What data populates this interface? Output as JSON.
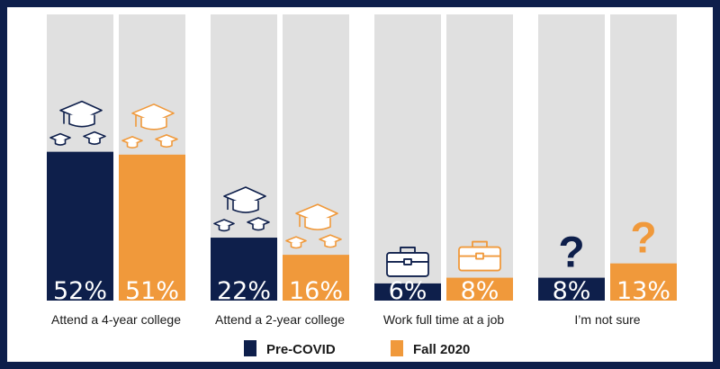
{
  "chart_data": {
    "type": "bar",
    "ylim": [
      0,
      100
    ],
    "categories": [
      {
        "label": "Attend a 4-year college",
        "icon": "graduation-cap-icon"
      },
      {
        "label": "Attend a 2-year college",
        "icon": "graduation-cap-icon"
      },
      {
        "label": "Work full time at a job",
        "icon": "briefcase-icon"
      },
      {
        "label": "I’m not sure",
        "icon": "question-mark-icon"
      }
    ],
    "series": [
      {
        "name": "Pre-COVID",
        "color": "#0e1f4b",
        "values": [
          52,
          22,
          6,
          8
        ],
        "labels": [
          "52%",
          "22%",
          "6%",
          "8%"
        ]
      },
      {
        "name": "Fall 2020",
        "color": "#f0993b",
        "values": [
          51,
          16,
          8,
          13
        ],
        "labels": [
          "51%",
          "16%",
          "8%",
          "13%"
        ]
      }
    ],
    "legend": "bottom-center",
    "track_color": "#e0e0e0"
  }
}
